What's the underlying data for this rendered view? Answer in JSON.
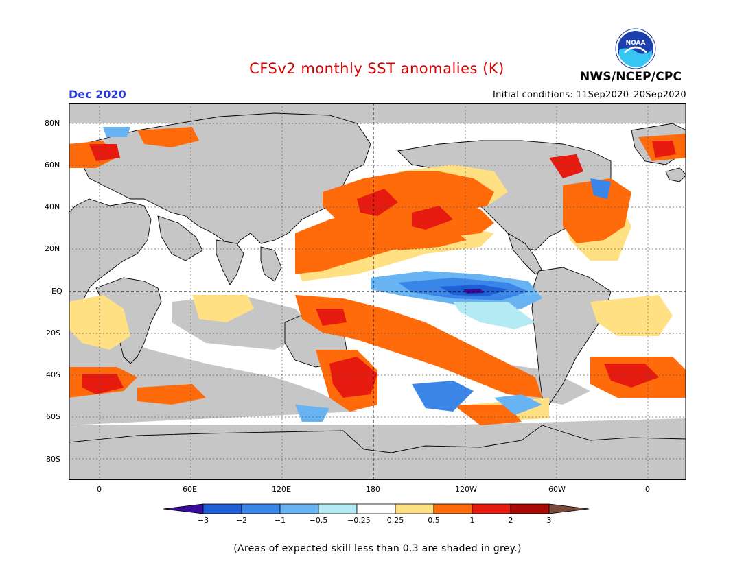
{
  "title": "CFSv2 monthly SST anomalies (K)",
  "month": "Dec 2020",
  "initial_conditions": "Initial conditions: 11Sep2020–20Sep2020",
  "agency": "NWS/NCEP/CPC",
  "logo_text": "NOAA",
  "footnote": "(Areas of expected skill less than 0.3 are shaded in grey.)",
  "lat_labels": [
    "80N",
    "60N",
    "40N",
    "20N",
    "EQ",
    "20S",
    "40S",
    "60S",
    "80S"
  ],
  "lon_labels": [
    "0",
    "60E",
    "120E",
    "180",
    "120W",
    "60W",
    "0"
  ],
  "colorbar": {
    "ticks": [
      "−3",
      "−2",
      "−1",
      "−0.5",
      "−0.25",
      "0.25",
      "0.5",
      "1",
      "2",
      "3"
    ],
    "colors": [
      "#3a0c9e",
      "#1f5fd6",
      "#3a86e8",
      "#68b3f2",
      "#b4eaf4",
      "#ffffff",
      "#ffe083",
      "#ff6a0a",
      "#e61a0e",
      "#a80a06",
      "#7a4a3a"
    ]
  },
  "colors": {
    "land": "#c6c6c6",
    "coastline": "#000000",
    "title": "#d40000",
    "month": "#2a3dd6"
  }
}
